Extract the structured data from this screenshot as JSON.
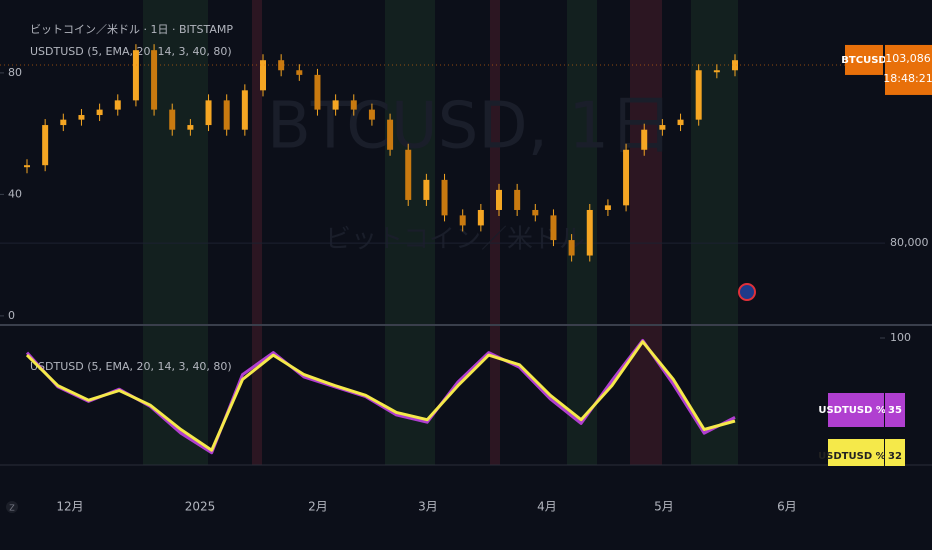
{
  "header": {
    "symbol_line": "ビットコイン／米ドル · 1日 · BITSTAMP",
    "indicator_line": "USDTUSD (5, EMA, 20, 14, 3, 40, 80)",
    "watermark": "BTCUSD, 1日",
    "watermark_sub": "ビットコイン／米ドル"
  },
  "chart_data": [
    {
      "type": "candlestick",
      "color": "#f5a623",
      "values": [
        90100,
        95300,
        96000,
        96600,
        97300,
        98500,
        105000,
        97300,
        94700,
        95300,
        98500,
        94700,
        99800,
        103700,
        102400,
        101800,
        97300,
        98500,
        97300,
        96000,
        92100,
        85600,
        88200,
        83600,
        82300,
        84300,
        86900,
        84300,
        83600,
        80400,
        78400,
        84300,
        84900,
        92100,
        94700,
        95300,
        96000,
        102400,
        102400,
        103700
      ],
      "ylim": [
        69400,
        111500
      ],
      "yticks": [
        {
          "value": 80000,
          "label": "80,000"
        }
      ],
      "y2lim": [
        -3,
        104
      ],
      "y2ticks": [
        80,
        40,
        0
      ],
      "last_price": {
        "symbol": "BTCUSD",
        "value": 103086,
        "label": "103,086",
        "time": "18:48:21"
      },
      "xticks": [
        "12月",
        "2025",
        "2月",
        "3月",
        "4月",
        "5月",
        "6月"
      ]
    },
    {
      "type": "line",
      "title": "USDTUSD (5, EMA, 20, 14, 3, 40, 80)",
      "ylim": [
        0,
        100
      ],
      "yticks": [
        100
      ],
      "series": [
        {
          "name": "USDTUSD %K",
          "color": "#b03fd0",
          "values": [
            88,
            60,
            48,
            58,
            44,
            22,
            6,
            70,
            88,
            68,
            60,
            52,
            37,
            31,
            64,
            88,
            76,
            50,
            30,
            65,
            98,
            62,
            22,
            35
          ]
        },
        {
          "name": "USDTUSD %D",
          "color": "#f5e94a",
          "values": [
            86,
            61,
            49,
            57,
            45,
            25,
            8,
            66,
            86,
            70,
            61,
            53,
            39,
            33,
            61,
            86,
            78,
            53,
            33,
            61,
            97,
            66,
            25,
            32
          ]
        }
      ]
    }
  ]
}
